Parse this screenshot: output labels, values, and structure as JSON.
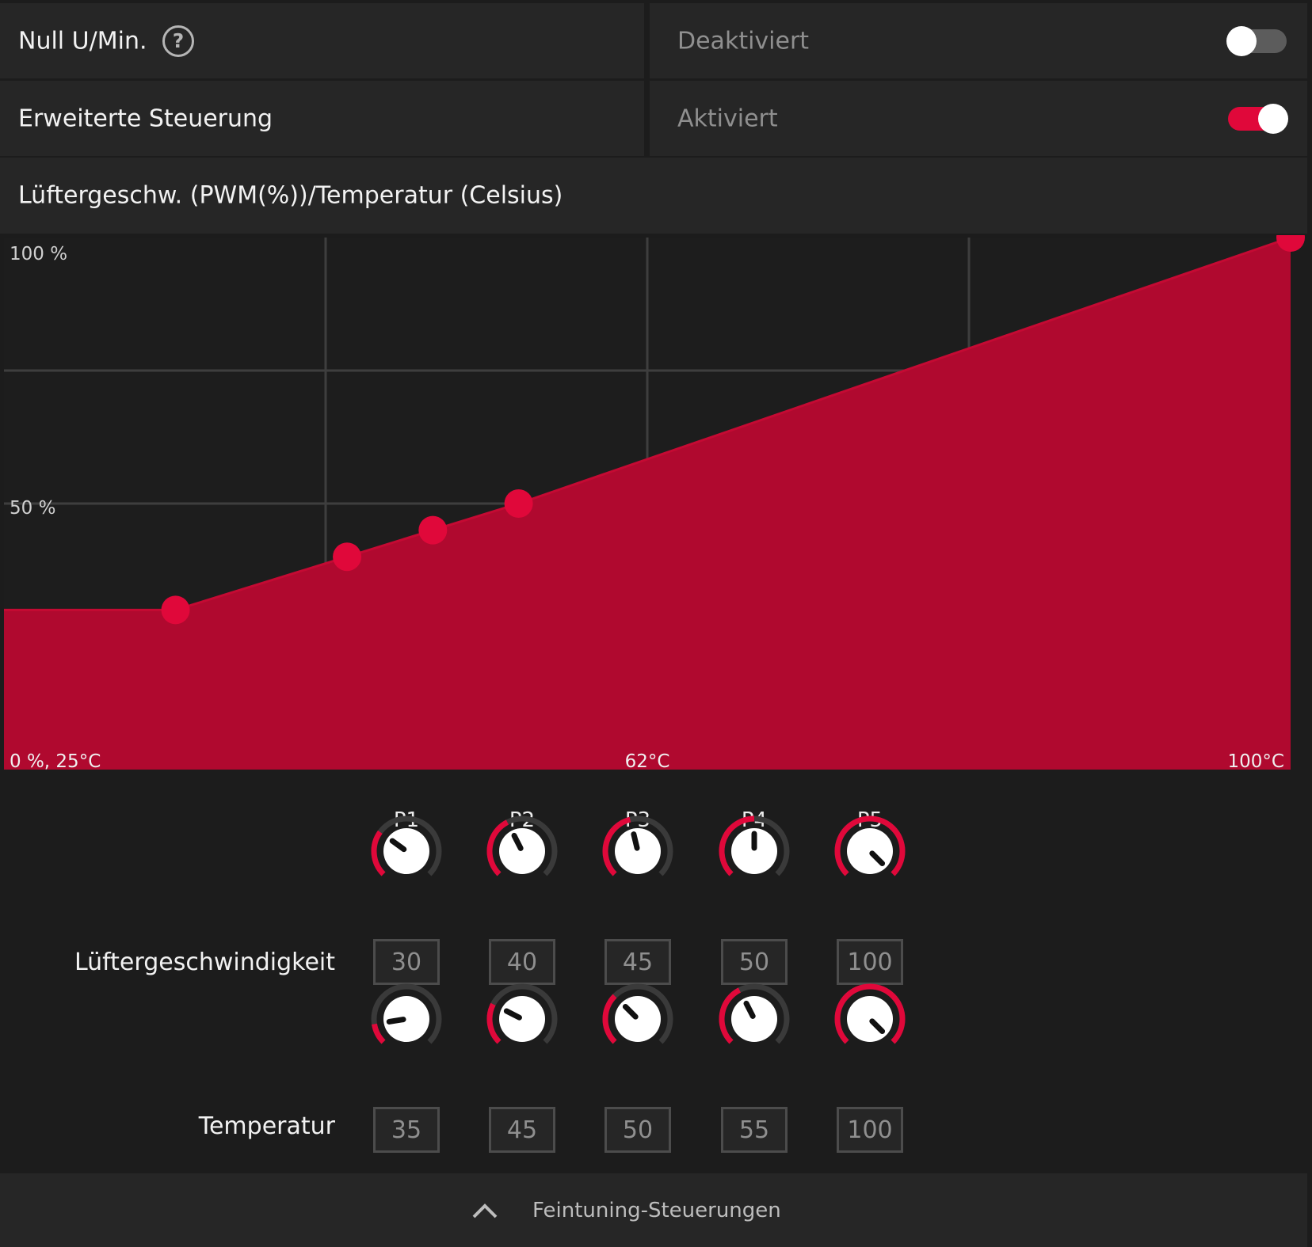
{
  "zero_rpm": {
    "label": "Null U/Min.",
    "help_icon": "?",
    "status": "Deaktiviert",
    "enabled": false
  },
  "advanced_control": {
    "label": "Erweiterte Steuerung",
    "status": "Aktiviert",
    "enabled": true
  },
  "chart_title": "Lüftergeschw. (PWM(%))/Temperatur (Celsius)",
  "chart_data": {
    "type": "area",
    "title": "Lüftergeschw. (PWM(%))/Temperatur (Celsius)",
    "x_unit": "°C",
    "y_unit": "%",
    "xlim": [
      25,
      100
    ],
    "ylim": [
      0,
      100
    ],
    "tick_labels": {
      "y_top": "100 %",
      "y_mid": "50 %",
      "origin": "0 %, 25°C",
      "x_mid": "62°C",
      "x_max": "100°C"
    },
    "grid": true,
    "fill_color": "#b0092f",
    "point_color": "#e0083a",
    "points": [
      {
        "x": 35,
        "y": 30
      },
      {
        "x": 45,
        "y": 40
      },
      {
        "x": 50,
        "y": 45
      },
      {
        "x": 55,
        "y": 50
      },
      {
        "x": 100,
        "y": 100
      }
    ]
  },
  "point_labels": [
    "P1",
    "P2",
    "P3",
    "P4",
    "P5"
  ],
  "fan_speed": {
    "label": "Lüftergeschwindigkeit",
    "values": [
      30,
      40,
      45,
      50,
      100
    ]
  },
  "temperature": {
    "label": "Temperatur",
    "values": [
      35,
      45,
      50,
      55,
      100
    ]
  },
  "footer": {
    "label": "Feintuning-Steuerungen",
    "chevron_icon": "chevron-up-icon"
  },
  "colors": {
    "accent": "#e0083a",
    "panel": "#262626",
    "background": "#1c1c1c"
  }
}
